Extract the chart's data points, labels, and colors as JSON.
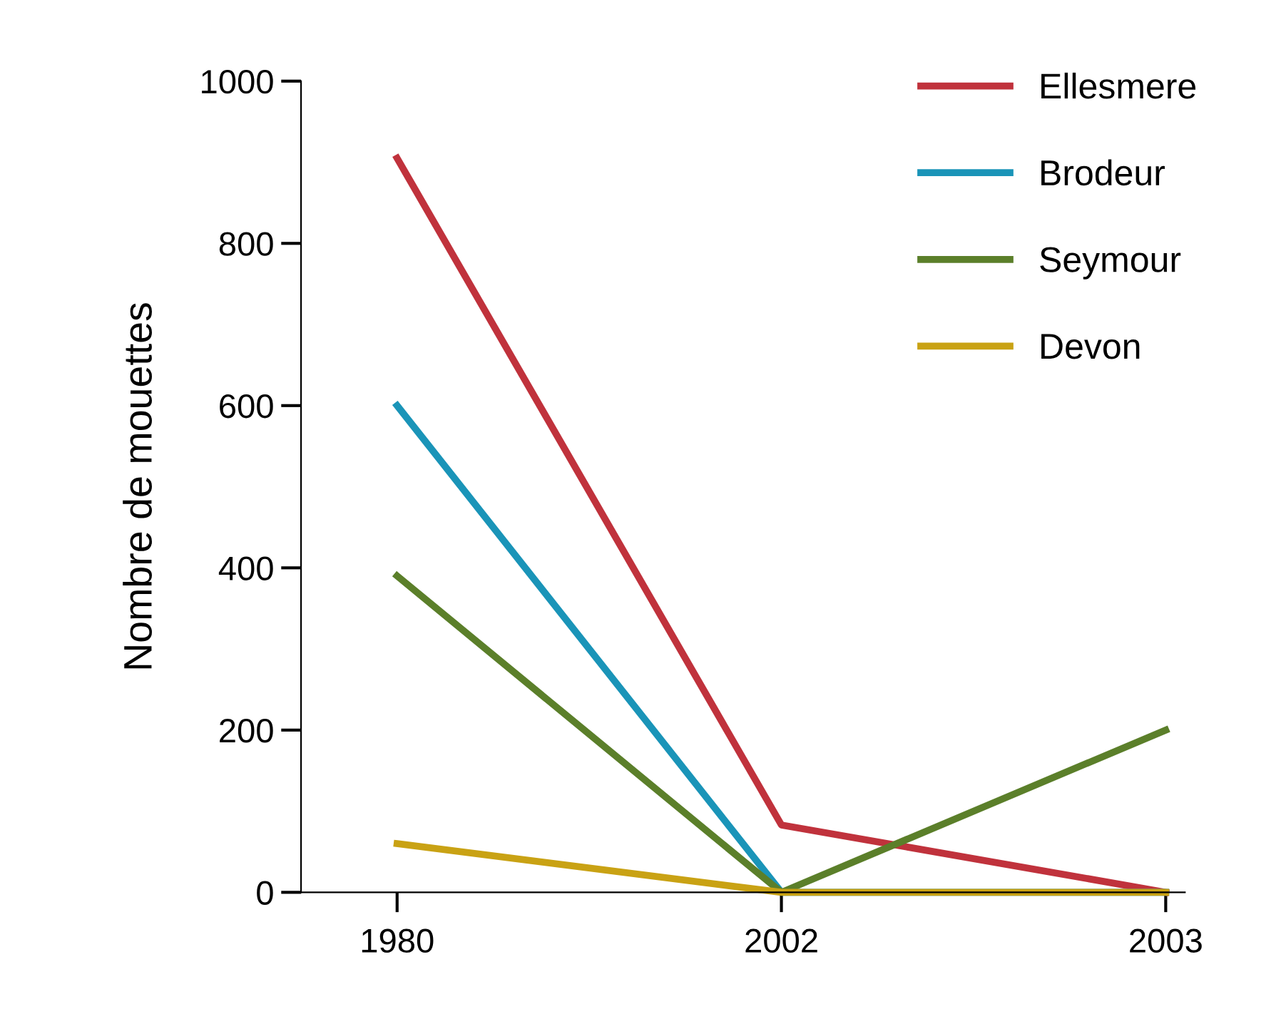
{
  "chart_data": {
    "type": "line",
    "ylabel": "Nombre de mouettes",
    "categories": [
      "1980",
      "2002",
      "2003"
    ],
    "series": [
      {
        "name": "Ellesmere",
        "color": "#c0323c",
        "values": [
          905,
          83,
          0
        ]
      },
      {
        "name": "Brodeur",
        "color": "#1a94b8",
        "values": [
          600,
          0,
          0
        ]
      },
      {
        "name": "Seymour",
        "color": "#5b7f2a",
        "values": [
          390,
          0,
          200
        ]
      },
      {
        "name": "Devon",
        "color": "#c9a214",
        "values": [
          60,
          0,
          0
        ]
      }
    ],
    "ylim": [
      0,
      1000
    ],
    "yticks": [
      0,
      200,
      400,
      600,
      800,
      1000
    ],
    "grid": false,
    "legend": "top right",
    "marker": "none",
    "line_style": "solid"
  }
}
